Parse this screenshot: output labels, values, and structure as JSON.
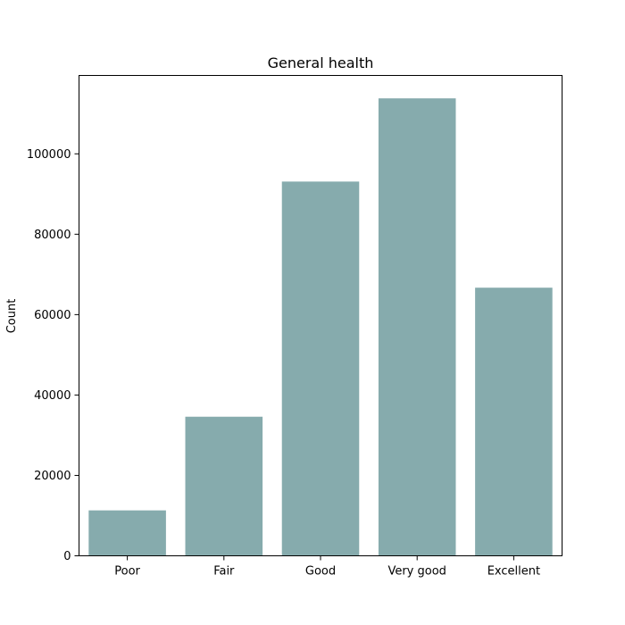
{
  "chart_data": {
    "type": "bar",
    "title": "General health",
    "xlabel": "",
    "ylabel": "Count",
    "categories": [
      "Poor",
      "Fair",
      "Good",
      "Very good",
      "Excellent"
    ],
    "values": [
      11300,
      34600,
      93100,
      113800,
      66700
    ],
    "ylim": [
      0,
      119500
    ],
    "yticks": [
      0,
      20000,
      40000,
      60000,
      80000,
      100000
    ],
    "bar_color": "#86abad",
    "grid": false,
    "legend": "none"
  }
}
